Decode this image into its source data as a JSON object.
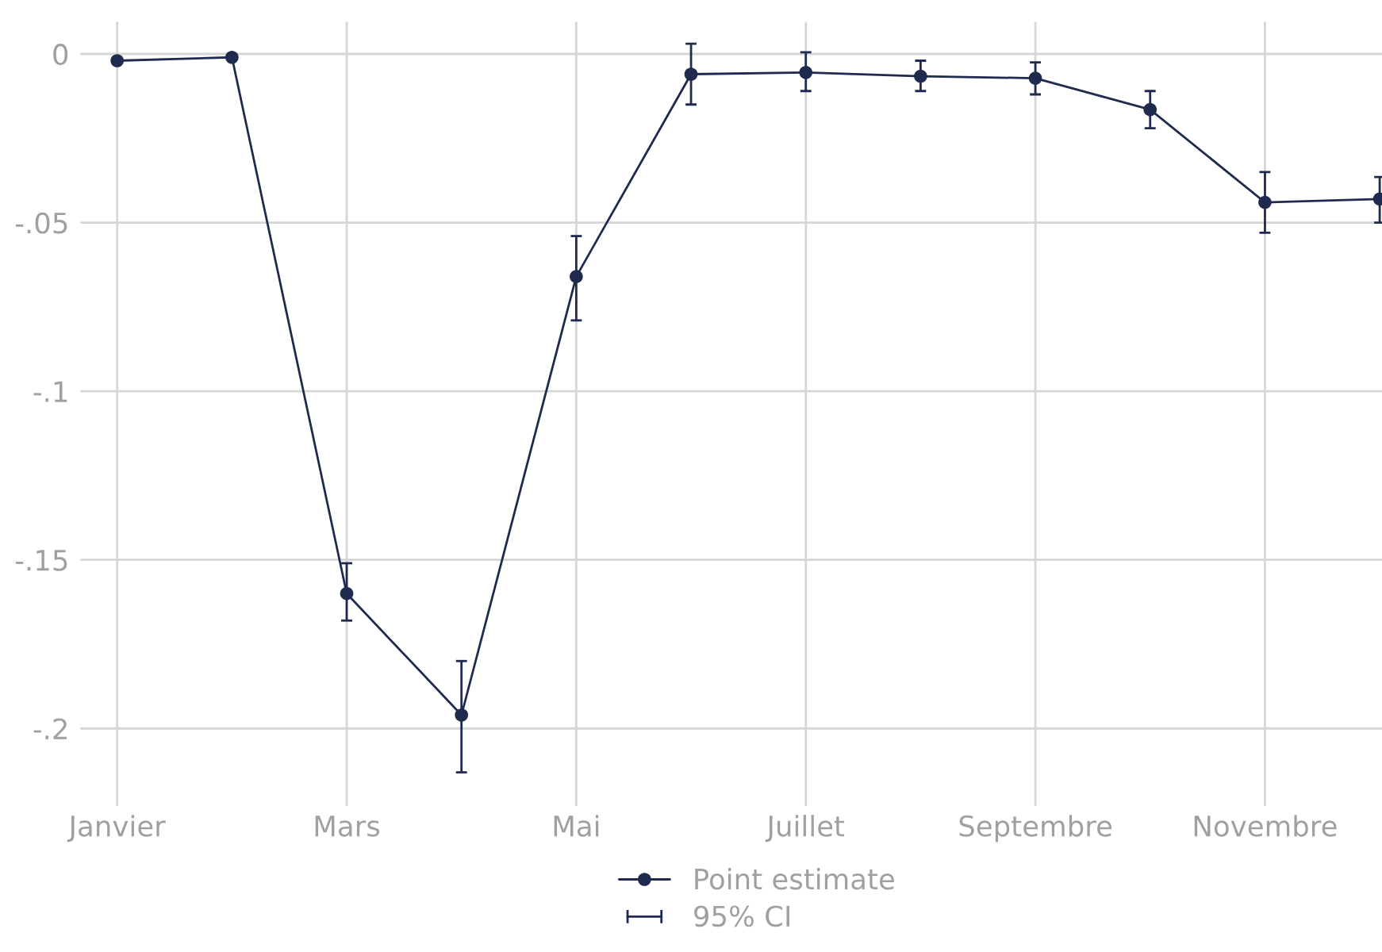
{
  "chart_data": {
    "type": "line",
    "categories": [
      "Janvier",
      null,
      "Mars",
      null,
      "Mai",
      null,
      "Juillet",
      null,
      "Septembre",
      null,
      "Novembre",
      null
    ],
    "ylim": [
      -0.223,
      0.0095
    ],
    "yticks": [
      0,
      {
        "value": -0.05,
        "label": "-.05"
      },
      {
        "value": -0.1,
        "label": "-.1"
      },
      {
        "value": -0.15,
        "label": "-.15"
      },
      {
        "value": -0.2,
        "label": "-.2"
      }
    ],
    "grid": true,
    "legend": "bottom",
    "marker": "circle",
    "line_style": "solid",
    "series": [
      {
        "name": "Point estimate",
        "color": "#1f2a4f",
        "values": [
          -0.002,
          -0.001,
          -0.16,
          -0.196,
          -0.066,
          -0.006,
          -0.0055,
          -0.0066,
          -0.0072,
          -0.0165,
          -0.044,
          -0.043
        ],
        "errors": [
          null,
          null,
          [
            -0.168,
            -0.151
          ],
          [
            -0.213,
            -0.18
          ],
          [
            -0.079,
            -0.054
          ],
          [
            -0.015,
            0.003
          ],
          [
            -0.011,
            0.0005
          ],
          [
            -0.011,
            -0.002
          ],
          [
            -0.012,
            -0.0025
          ],
          [
            -0.022,
            -0.011
          ],
          [
            -0.053,
            -0.035
          ],
          [
            -0.05,
            -0.0365
          ]
        ]
      }
    ],
    "annotations": [
      "95% CI"
    ]
  }
}
